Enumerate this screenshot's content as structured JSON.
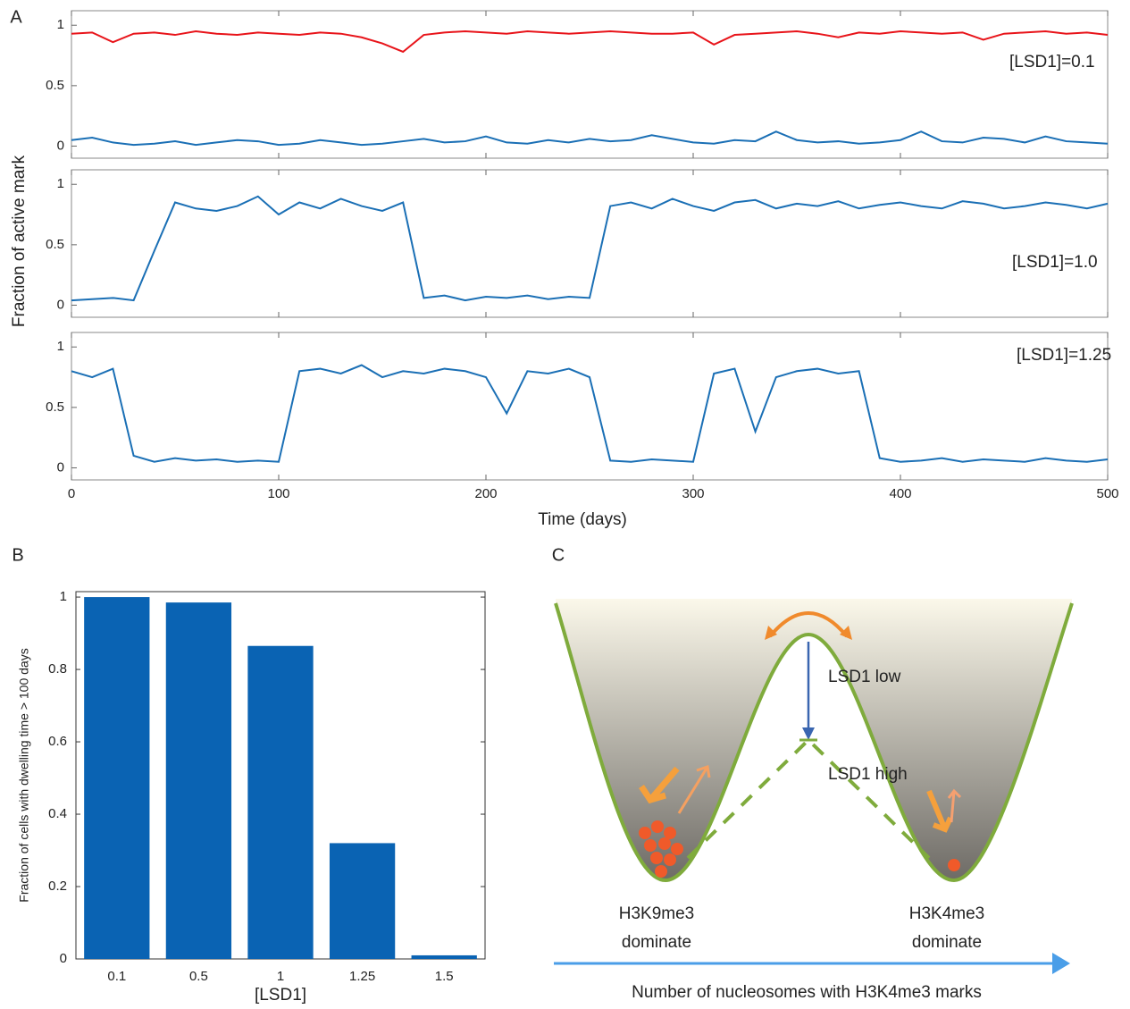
{
  "chart_data": [
    {
      "type": "line",
      "panel": "A",
      "annotation": "[LSD1]=0.1",
      "x": [
        0,
        10,
        20,
        30,
        40,
        50,
        60,
        70,
        80,
        90,
        100,
        110,
        120,
        130,
        140,
        150,
        160,
        170,
        180,
        190,
        200,
        210,
        220,
        230,
        240,
        250,
        260,
        270,
        280,
        290,
        300,
        310,
        320,
        330,
        340,
        350,
        360,
        370,
        380,
        390,
        400,
        410,
        420,
        430,
        440,
        450,
        460,
        470,
        480,
        490,
        500
      ],
      "series": [
        {
          "color": "#e8141a",
          "values": [
            0.93,
            0.94,
            0.86,
            0.93,
            0.94,
            0.92,
            0.95,
            0.93,
            0.92,
            0.94,
            0.93,
            0.92,
            0.94,
            0.93,
            0.9,
            0.85,
            0.78,
            0.92,
            0.94,
            0.95,
            0.94,
            0.93,
            0.95,
            0.94,
            0.93,
            0.94,
            0.95,
            0.94,
            0.93,
            0.93,
            0.94,
            0.84,
            0.92,
            0.93,
            0.94,
            0.95,
            0.93,
            0.9,
            0.94,
            0.93,
            0.95,
            0.94,
            0.93,
            0.94,
            0.88,
            0.93,
            0.94,
            0.95,
            0.93,
            0.94,
            0.92
          ]
        },
        {
          "color": "#1a6fb5",
          "values": [
            0.05,
            0.07,
            0.03,
            0.01,
            0.02,
            0.04,
            0.01,
            0.03,
            0.05,
            0.04,
            0.01,
            0.02,
            0.05,
            0.03,
            0.01,
            0.02,
            0.04,
            0.06,
            0.03,
            0.04,
            0.08,
            0.03,
            0.02,
            0.05,
            0.03,
            0.06,
            0.04,
            0.05,
            0.09,
            0.06,
            0.03,
            0.02,
            0.05,
            0.04,
            0.12,
            0.05,
            0.03,
            0.04,
            0.02,
            0.03,
            0.05,
            0.12,
            0.04,
            0.03,
            0.07,
            0.06,
            0.03,
            0.08,
            0.04,
            0.03,
            0.02
          ]
        }
      ],
      "ylim": [
        -0.1,
        1.12
      ],
      "yticks": [
        0,
        0.5,
        1
      ]
    },
    {
      "type": "line",
      "annotation": "[LSD1]=1.0",
      "y_label": "Fraction of active mark",
      "x": [
        0,
        10,
        20,
        30,
        40,
        50,
        60,
        70,
        80,
        90,
        100,
        110,
        120,
        130,
        140,
        150,
        160,
        170,
        180,
        190,
        200,
        210,
        220,
        230,
        240,
        250,
        260,
        270,
        280,
        290,
        300,
        310,
        320,
        330,
        340,
        350,
        360,
        370,
        380,
        390,
        400,
        410,
        420,
        430,
        440,
        450,
        460,
        470,
        480,
        490,
        500
      ],
      "series": [
        {
          "color": "#1a6fb5",
          "values": [
            0.04,
            0.05,
            0.06,
            0.04,
            0.45,
            0.85,
            0.8,
            0.78,
            0.82,
            0.9,
            0.75,
            0.85,
            0.8,
            0.88,
            0.82,
            0.78,
            0.85,
            0.06,
            0.08,
            0.04,
            0.07,
            0.06,
            0.08,
            0.05,
            0.07,
            0.06,
            0.82,
            0.85,
            0.8,
            0.88,
            0.82,
            0.78,
            0.85,
            0.87,
            0.8,
            0.84,
            0.82,
            0.86,
            0.8,
            0.83,
            0.85,
            0.82,
            0.8,
            0.86,
            0.84,
            0.8,
            0.82,
            0.85,
            0.83,
            0.8,
            0.84
          ]
        }
      ],
      "ylim": [
        -0.1,
        1.12
      ],
      "yticks": [
        0,
        0.5,
        1
      ]
    },
    {
      "type": "line",
      "annotation": "[LSD1]=1.25",
      "x_label": "Time (days)",
      "x": [
        0,
        10,
        20,
        30,
        40,
        50,
        60,
        70,
        80,
        90,
        100,
        110,
        120,
        130,
        140,
        150,
        160,
        170,
        180,
        190,
        200,
        210,
        220,
        230,
        240,
        250,
        260,
        270,
        280,
        290,
        300,
        310,
        320,
        330,
        340,
        350,
        360,
        370,
        380,
        390,
        400,
        410,
        420,
        430,
        440,
        450,
        460,
        470,
        480,
        490,
        500
      ],
      "series": [
        {
          "color": "#1a6fb5",
          "values": [
            0.8,
            0.75,
            0.82,
            0.1,
            0.05,
            0.08,
            0.06,
            0.07,
            0.05,
            0.06,
            0.05,
            0.8,
            0.82,
            0.78,
            0.85,
            0.75,
            0.8,
            0.78,
            0.82,
            0.8,
            0.75,
            0.45,
            0.8,
            0.78,
            0.82,
            0.75,
            0.06,
            0.05,
            0.07,
            0.06,
            0.05,
            0.78,
            0.82,
            0.3,
            0.75,
            0.8,
            0.82,
            0.78,
            0.8,
            0.08,
            0.05,
            0.06,
            0.08,
            0.05,
            0.07,
            0.06,
            0.05,
            0.08,
            0.06,
            0.05,
            0.07
          ]
        }
      ],
      "ylim": [
        -0.1,
        1.12
      ],
      "yticks": [
        0,
        0.5,
        1
      ],
      "xlim": [
        0,
        500
      ],
      "xticks": [
        0,
        100,
        200,
        300,
        400,
        500
      ]
    },
    {
      "type": "bar",
      "panel": "B",
      "categories": [
        "0.1",
        "0.5",
        "1",
        "1.25",
        "1.5"
      ],
      "values": [
        1.0,
        0.985,
        0.865,
        0.32,
        0.01
      ],
      "color": "#0a63b3",
      "ylim": [
        0,
        1.015
      ],
      "yticks": [
        0,
        0.2,
        0.4,
        0.6,
        0.8,
        1
      ],
      "x_label": "[LSD1]",
      "y_label": "Fraction of cells with dwelling time > 100 days"
    }
  ],
  "diagram": {
    "panel": "C",
    "barrier_low": "LSD1 low",
    "barrier_high": "LSD1 high",
    "left_well": [
      "H3K9me3",
      "dominate"
    ],
    "right_well": [
      "H3K4me3",
      "dominate"
    ],
    "axis_label": "Number of nucleosomes with H3K4me3 marks"
  }
}
